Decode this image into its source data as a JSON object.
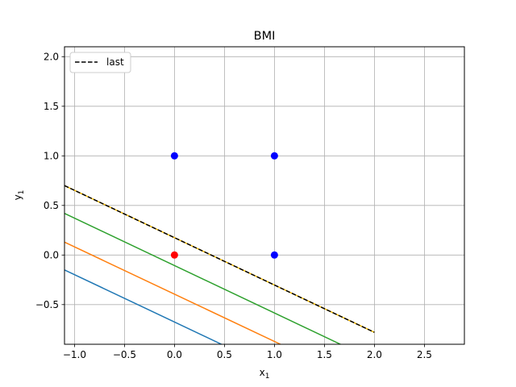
{
  "chart_data": {
    "type": "line",
    "title": "BMI",
    "xlabel": "x",
    "xlabel_sub": "1",
    "ylabel": "y",
    "ylabel_sub": "1",
    "xlim": [
      -1.1,
      2.9
    ],
    "ylim": [
      -0.9,
      2.1
    ],
    "xticks": [
      -1.0,
      -0.5,
      0.0,
      0.5,
      1.0,
      1.5,
      2.0,
      2.5
    ],
    "xtick_labels": [
      "−1.0",
      "−0.5",
      "0.0",
      "0.5",
      "1.0",
      "1.5",
      "2.0",
      "2.5"
    ],
    "yticks": [
      -0.5,
      0.0,
      0.5,
      1.0,
      1.5,
      2.0
    ],
    "ytick_labels": [
      "−0.5",
      "0.0",
      "0.5",
      "1.0",
      "1.5",
      "2.0"
    ],
    "grid": true,
    "legend": {
      "placement": "top-left",
      "entries": [
        "last"
      ]
    },
    "series": [
      {
        "color": "#1f77b4",
        "style": "solid",
        "points": [
          [
            -1.1,
            -0.15
          ],
          [
            0.47,
            -0.9
          ]
        ]
      },
      {
        "color": "#ff7f0e",
        "style": "solid",
        "points": [
          [
            -1.1,
            0.13
          ],
          [
            1.06,
            -0.9
          ]
        ]
      },
      {
        "color": "#2ca02c",
        "style": "solid",
        "points": [
          [
            -1.1,
            0.42
          ],
          [
            1.66,
            -0.9
          ]
        ]
      },
      {
        "color": "#ffbf00",
        "style": "solid",
        "points": [
          [
            -1.1,
            0.7
          ],
          [
            2.0,
            -0.78
          ]
        ]
      },
      {
        "name": "last",
        "color": "#000000",
        "style": "dashed",
        "points": [
          [
            -1.1,
            0.7
          ],
          [
            2.0,
            -0.78
          ]
        ]
      }
    ],
    "scatter": [
      {
        "x": 0,
        "y": 1,
        "color": "#0000ff"
      },
      {
        "x": 1,
        "y": 1,
        "color": "#0000ff"
      },
      {
        "x": 1,
        "y": 0,
        "color": "#0000ff"
      },
      {
        "x": 0,
        "y": 0,
        "color": "#ff0000"
      }
    ]
  }
}
